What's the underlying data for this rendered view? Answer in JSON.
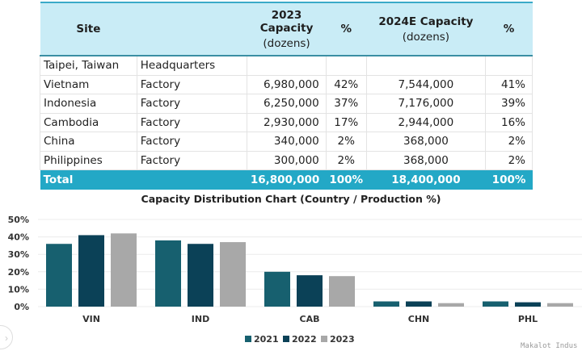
{
  "table": {
    "headers": [
      {
        "title": "Site",
        "sub": ""
      },
      {
        "title": "",
        "sub": ""
      },
      {
        "title": "2023 Capacity",
        "sub": "(dozens)"
      },
      {
        "title": "%",
        "sub": ""
      },
      {
        "title": "2024E Capacity",
        "sub": "(dozens)"
      },
      {
        "title": "%",
        "sub": ""
      }
    ],
    "rows": [
      {
        "site": "Taipei, Taiwan",
        "type": "Headquarters",
        "cap2023": "",
        "pct2023": "",
        "cap2024": "",
        "pct2024": ""
      },
      {
        "site": "Vietnam",
        "type": "Factory",
        "cap2023": "6,980,000",
        "pct2023": "42%",
        "cap2024": "7,544,000",
        "pct2024": "41%"
      },
      {
        "site": "Indonesia",
        "type": "Factory",
        "cap2023": "6,250,000",
        "pct2023": "37%",
        "cap2024": "7,176,000",
        "pct2024": "39%"
      },
      {
        "site": "Cambodia",
        "type": "Factory",
        "cap2023": "2,930,000",
        "pct2023": "17%",
        "cap2024": "2,944,000",
        "pct2024": "16%"
      },
      {
        "site": "China",
        "type": "Factory",
        "cap2023": "340,000",
        "pct2023": "2%",
        "cap2024": "368,000",
        "pct2024": "2%"
      },
      {
        "site": "Philippines",
        "type": "Factory",
        "cap2023": "300,000",
        "pct2023": "2%",
        "cap2024": "368,000",
        "pct2024": "2%"
      }
    ],
    "total": {
      "label": "Total",
      "cap2023": "16,800,000",
      "pct2023": "100%",
      "cap2024": "18,400,000",
      "pct2024": "100%"
    }
  },
  "colors": {
    "header_bg": "#c9ecf6",
    "total_bg": "#23a8c6",
    "s2021": "#17606f",
    "s2022": "#0b4157",
    "s2023": "#a8a8a8"
  },
  "chart_data": {
    "type": "bar",
    "title": "Capacity Distribution Chart (Country / Production %)",
    "xlabel": "",
    "ylabel": "",
    "categories": [
      "VIN",
      "IND",
      "CAB",
      "CHN",
      "PHL"
    ],
    "series": [
      {
        "name": "2021",
        "values": [
          36,
          38,
          20,
          3,
          3
        ]
      },
      {
        "name": "2022",
        "values": [
          41,
          36,
          18,
          3,
          2.5
        ]
      },
      {
        "name": "2023",
        "values": [
          42,
          37,
          17.5,
          2,
          2
        ]
      }
    ],
    "ylim": [
      0,
      50
    ],
    "yticks": [
      "0%",
      "10%",
      "20%",
      "30%",
      "40%",
      "50%"
    ],
    "grid": true,
    "legend": "bottom-center"
  },
  "nav": {
    "next_icon": "›"
  },
  "watermark": "Makalot Indus"
}
